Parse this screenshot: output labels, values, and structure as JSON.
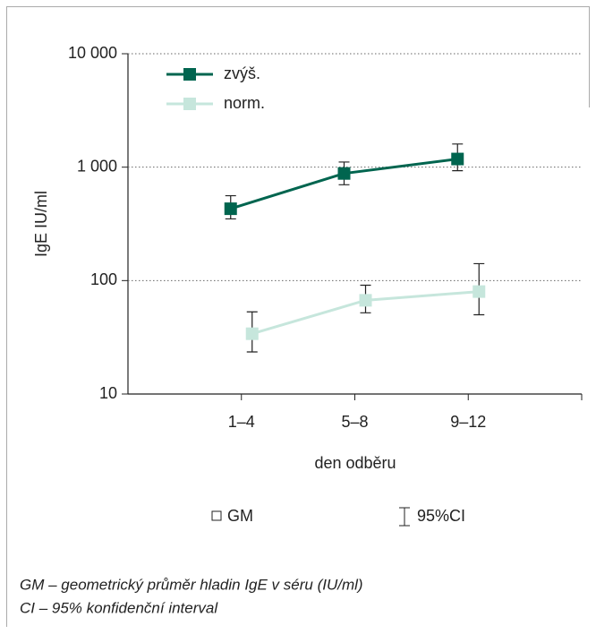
{
  "chart_data": {
    "type": "line",
    "x_label": "den odběru",
    "y_label": "IgE IU/ml",
    "categories": [
      "1–4",
      "5–8",
      "9–12"
    ],
    "log_y": true,
    "grid": true,
    "ylim": [
      10,
      10000
    ],
    "yticks": [
      10,
      100,
      {
        "value": 1000,
        "label": "1 000"
      },
      {
        "value": 10000,
        "label": "10 000"
      }
    ],
    "series": [
      {
        "name": "zvýš.",
        "color": "#00654f",
        "values": [
          430,
          880,
          1180
        ],
        "ci_low": [
          350,
          700,
          930
        ],
        "ci_high": [
          560,
          1110,
          1600
        ]
      },
      {
        "name": "norm.",
        "color": "#c6e6dc",
        "values": [
          34,
          67,
          80
        ],
        "ci_low": [
          23.5,
          52,
          50
        ],
        "ci_high": [
          53,
          91,
          141
        ]
      }
    ],
    "legend_items": [
      "GM",
      "95%CI"
    ],
    "footnotes": [
      "GM – geometrický průměr hladin IgE v séru (IU/ml)",
      "CI – 95% konfidenční interval"
    ]
  }
}
